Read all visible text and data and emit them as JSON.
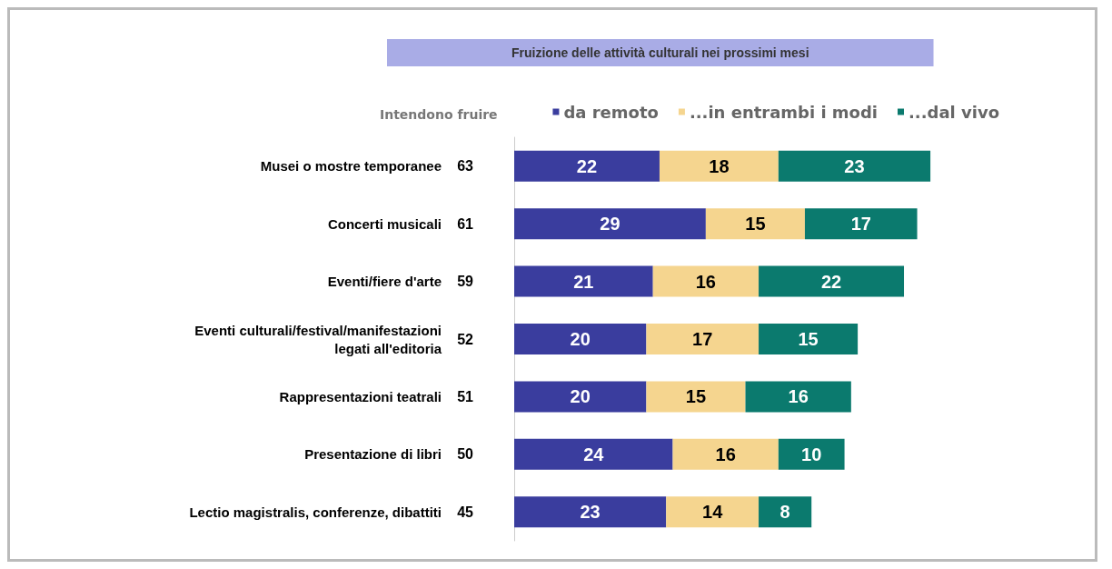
{
  "chart_data": {
    "type": "bar",
    "orientation": "horizontal",
    "stacked": true,
    "title": "Fruizione delle attività culturali nei prossimi mesi",
    "legend_title": "Intendono fruire",
    "legend": "top",
    "categories": [
      "Musei o mostre temporanee",
      "Concerti musicali",
      "Eventi/fiere d'arte",
      "Eventi culturali/festival/manifestazioni\nlegati all'editoria",
      "Rappresentazioni teatrali",
      "Presentazione di libri",
      "Lectio magistralis, conferenze, dibattiti"
    ],
    "series": [
      {
        "name": "da remoto",
        "color": "#3a3d9e",
        "values": [
          22,
          29,
          21,
          20,
          20,
          24,
          23
        ]
      },
      {
        "name": "...in entrambi i modi",
        "color": "#f5d58f",
        "values": [
          18,
          15,
          16,
          17,
          15,
          16,
          14
        ]
      },
      {
        "name": "...dal vivo",
        "color": "#0b7a6e",
        "values": [
          23,
          17,
          22,
          15,
          16,
          10,
          8
        ]
      }
    ],
    "totals": [
      "63",
      "61",
      "59",
      "52",
      "51",
      "50",
      "45"
    ],
    "data_labels": true
  }
}
